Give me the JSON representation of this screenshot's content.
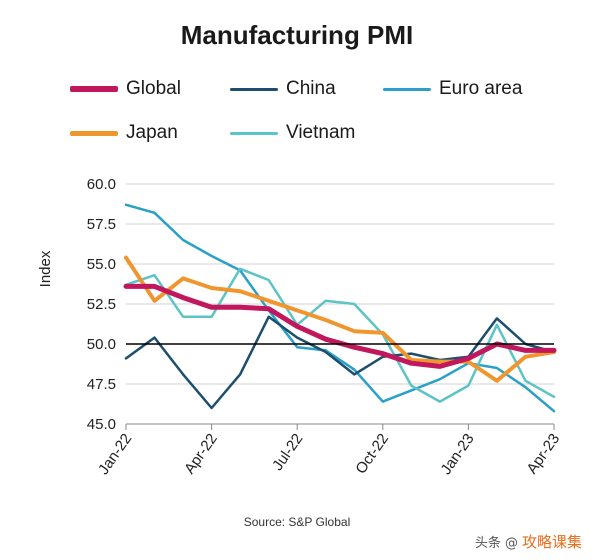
{
  "chart_data": {
    "type": "line",
    "title": "Manufacturing PMI",
    "ylabel": "Index",
    "xlabel": "",
    "source": "Source: S&P Global",
    "ylim": [
      45.0,
      60.0
    ],
    "reference_line": 50.0,
    "yticks": [
      "60.0",
      "57.5",
      "55.0",
      "52.5",
      "50.0",
      "47.5",
      "45.0"
    ],
    "x": [
      "Jan-22",
      "Feb-22",
      "Mar-22",
      "Apr-22",
      "May-22",
      "Jun-22",
      "Jul-22",
      "Aug-22",
      "Sep-22",
      "Oct-22",
      "Nov-22",
      "Dec-22",
      "Jan-23",
      "Feb-23",
      "Mar-23",
      "Apr-23"
    ],
    "xtick_labels": [
      "Jan-22",
      "Apr-22",
      "Jul-22",
      "Oct-22",
      "Jan-23",
      "Apr-23"
    ],
    "xtick_index": [
      0,
      3,
      6,
      9,
      12,
      15
    ],
    "legend_placement": "top",
    "grid": "horizontal",
    "series": [
      {
        "name": "Global",
        "color": "#c0175d",
        "width": 5,
        "values": [
          53.6,
          53.6,
          52.9,
          52.3,
          52.3,
          52.2,
          51.1,
          50.3,
          49.8,
          49.4,
          48.8,
          48.6,
          49.1,
          50.0,
          49.6,
          49.6
        ]
      },
      {
        "name": "China",
        "color": "#1d4e6e",
        "width": 2.5,
        "values": [
          49.1,
          50.4,
          48.1,
          46.0,
          48.1,
          51.7,
          50.4,
          49.5,
          48.1,
          49.2,
          49.4,
          49.0,
          49.2,
          51.6,
          50.0,
          49.5
        ]
      },
      {
        "name": "Euro area",
        "color": "#2aa0c8",
        "width": 2.5,
        "values": [
          58.7,
          58.2,
          56.5,
          55.5,
          54.6,
          52.1,
          49.8,
          49.6,
          48.4,
          46.4,
          47.1,
          47.8,
          48.8,
          48.5,
          47.3,
          45.8
        ]
      },
      {
        "name": "Japan",
        "color": "#f0962e",
        "width": 4,
        "values": [
          55.4,
          52.7,
          54.1,
          53.5,
          53.3,
          52.7,
          52.1,
          51.5,
          50.8,
          50.7,
          49.0,
          48.9,
          48.9,
          47.7,
          49.2,
          49.5
        ]
      },
      {
        "name": "Vietnam",
        "color": "#5cc4c4",
        "width": 2.5,
        "values": [
          53.7,
          54.3,
          51.7,
          51.7,
          54.7,
          54.0,
          51.2,
          52.7,
          52.5,
          50.6,
          47.4,
          46.4,
          47.4,
          51.2,
          47.7,
          46.7
        ]
      }
    ]
  },
  "watermark": {
    "prefix": "头条 @",
    "text": "攻略课集"
  }
}
